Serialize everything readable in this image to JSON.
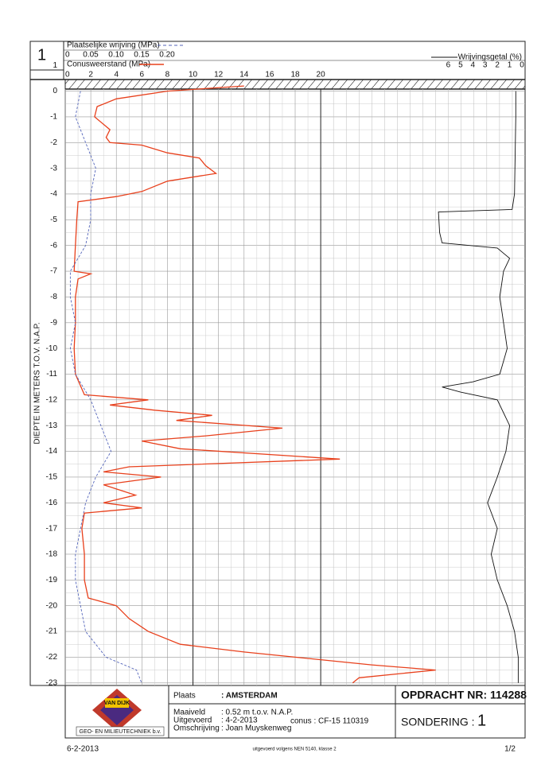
{
  "chart_data": {
    "type": "cpt",
    "sheet_number": "1",
    "ylabel": "DIEPTE IN METERS T.O.V. N.A.P.",
    "ylim": [
      -23.1,
      0.45
    ],
    "yticks": [
      1,
      0,
      -1,
      -2,
      -3,
      -4,
      -5,
      -6,
      -7,
      -8,
      -9,
      -10,
      -11,
      -12,
      -13,
      -14,
      -15,
      -16,
      -17,
      -18,
      -19,
      -20,
      -21,
      -22,
      -23
    ],
    "grid": true,
    "axes": {
      "friction": {
        "label": "Plaatselijke wrijving (MPa)",
        "xlim": [
          0,
          0.2
        ],
        "xticks": [
          0,
          0.05,
          {
            "value": 0.1,
            "label": "0.10"
          },
          0.15,
          {
            "value": 0.2,
            "label": "0.20"
          }
        ]
      },
      "cone": {
        "label": "Conusweerstand (MPa)",
        "xlim": [
          0,
          36
        ],
        "xticks": [
          0,
          2,
          4,
          6,
          8,
          10,
          12,
          14,
          16,
          18,
          20
        ]
      },
      "ratio": {
        "label": "Wrijvingsgetal (%)",
        "xlim": [
          0,
          7
        ],
        "reversed": true,
        "xticks": [
          6,
          5,
          4,
          3,
          2,
          1,
          0
        ]
      }
    },
    "series": [
      {
        "name": "Conusweerstand (MPa)",
        "axis": "cone",
        "color": "#e8401c",
        "dash": false,
        "depth": [
          0.2,
          0,
          -0.3,
          -0.6,
          -1,
          -1.5,
          -1.8,
          -2,
          -2.1,
          -2.4,
          -2.6,
          -2.9,
          -3.2,
          -3.5,
          -3.9,
          -4.1,
          -4.3,
          -5,
          -6,
          -7,
          -7.1,
          -7.3,
          -8,
          -9,
          -10,
          -11,
          -11.8,
          -12,
          -12.2,
          -12.4,
          -12.6,
          -12.8,
          -13.1,
          -13.4,
          -13.6,
          -13.9,
          -14.3,
          -14.6,
          -14.8,
          -15,
          -15.3,
          -15.7,
          -16,
          -16.2,
          -16.4,
          -17,
          -18,
          -19,
          -19.7,
          -20,
          -20.5,
          -21,
          -21.5,
          -21.8,
          -22,
          -22.3,
          -22.5,
          -22.8,
          -23
        ],
        "values": [
          14,
          8,
          4,
          2.5,
          2.3,
          3.5,
          3.2,
          3.5,
          6,
          8,
          10.5,
          11,
          11.8,
          8,
          6,
          4,
          1,
          0.9,
          0.8,
          0.7,
          2,
          1,
          0.8,
          0.8,
          0.7,
          0.8,
          1.5,
          6.5,
          3.5,
          7,
          11.5,
          8.7,
          17,
          11,
          6,
          9,
          21.5,
          5,
          3,
          7.5,
          3,
          5.5,
          3,
          6,
          1.5,
          1.3,
          1.5,
          1.5,
          1.8,
          4,
          5,
          6.5,
          9,
          14,
          18,
          24,
          29,
          23,
          22.5
        ]
      },
      {
        "name": "Plaatselijke wrijving (MPa)",
        "axis": "friction",
        "color": "#5566bb",
        "dash": true,
        "depth": [
          0,
          -1,
          -2,
          -3,
          -4,
          -5,
          -6,
          -7,
          -8,
          -9,
          -10,
          -11,
          -12,
          -13,
          -14,
          -15,
          -16,
          -17,
          -18,
          -19,
          -20,
          -21,
          -22,
          -22.5,
          -23
        ],
        "values": [
          0.03,
          0.02,
          0.04,
          0.06,
          0.05,
          0.05,
          0.04,
          0.01,
          0.01,
          0.02,
          0.01,
          0.02,
          0.05,
          0.07,
          0.09,
          0.06,
          0.04,
          0.03,
          0.02,
          0.02,
          0.03,
          0.04,
          0.08,
          0.14,
          0.15
        ]
      },
      {
        "name": "Wrijvingsgetal (%)",
        "axis": "ratio",
        "color": "#111111",
        "dash": false,
        "depth": [
          0,
          -1,
          -4,
          -4.6,
          -4.7,
          -5.5,
          -5.9,
          -6.1,
          -6.5,
          -7,
          -8,
          -9,
          -10,
          -11,
          -11.3,
          -11.5,
          -11.7,
          -12,
          -13,
          -14,
          -15,
          -16,
          -17,
          -18,
          -19,
          -20,
          -21,
          -22,
          -23
        ],
        "values": [
          0.5,
          0.5,
          0.6,
          0.8,
          6.8,
          6.7,
          6.5,
          2,
          1,
          1.5,
          1.8,
          1.5,
          1.2,
          1.8,
          4,
          6.5,
          5,
          2,
          1,
          1.3,
          2,
          2.8,
          2,
          2.5,
          2,
          1.2,
          0.6,
          0.3,
          0.3
        ]
      }
    ],
    "footer": {
      "logo_name": "VAN DIJK",
      "company": "GEO- EN MILIEUTECHNIEK b.v.",
      "place_label": "Plaats",
      "place": ": AMSTERDAM",
      "surface_label": "Maaiveld",
      "surface": ": 0.52  m t.o.v. N.A.P.",
      "date_label": "Uitgevoerd",
      "date": ": 4-2-2013",
      "cone": "conus : CF-15   110319",
      "desc_label": "Omschrijving",
      "desc": ": Joan Muyskenweg",
      "order": "OPDRACHT NR: 114288",
      "sounding_label": "SONDERING :",
      "sounding": "1",
      "print_date": "6-2-2013",
      "standard": "uitgevoerd volgens NEN 5140, klasse 2",
      "page": "1/2"
    }
  }
}
